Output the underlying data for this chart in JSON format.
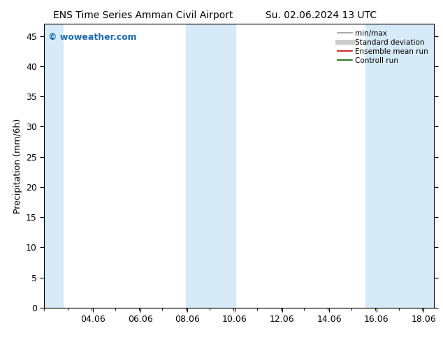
{
  "title_left": "ENS Time Series Amman Civil Airport",
  "title_right": "Su. 02.06.2024 13 UTC",
  "ylabel": "Precipitation (mm/6h)",
  "xlim": [
    2.0,
    18.5
  ],
  "ylim": [
    0,
    47
  ],
  "yticks": [
    0,
    5,
    10,
    15,
    20,
    25,
    30,
    35,
    40,
    45
  ],
  "xtick_labels": [
    "04.06",
    "06.06",
    "08.06",
    "10.06",
    "12.06",
    "14.06",
    "16.06",
    "18.06"
  ],
  "xtick_positions": [
    4.06,
    6.06,
    8.06,
    10.06,
    12.06,
    14.06,
    16.06,
    18.06
  ],
  "shaded_bands": [
    {
      "x_start": 2.0,
      "x_end": 2.8
    },
    {
      "x_start": 8.0,
      "x_end": 10.1
    },
    {
      "x_start": 15.6,
      "x_end": 18.5
    }
  ],
  "band_color": "#d6eaf8",
  "band_alpha": 1.0,
  "watermark_text": "© woweather.com",
  "watermark_color": "#1a6ab5",
  "watermark_fontsize": 9,
  "legend_entries": [
    {
      "label": "min/max",
      "color": "#999999",
      "lw": 1.2
    },
    {
      "label": "Standard deviation",
      "color": "#cccccc",
      "lw": 5
    },
    {
      "label": "Ensemble mean run",
      "color": "#cc0000",
      "lw": 1.2
    },
    {
      "label": "Controll run",
      "color": "#006600",
      "lw": 1.2
    }
  ],
  "bg_color": "#ffffff",
  "plot_bg_color": "#ffffff",
  "font_size": 9,
  "title_font_size": 10
}
